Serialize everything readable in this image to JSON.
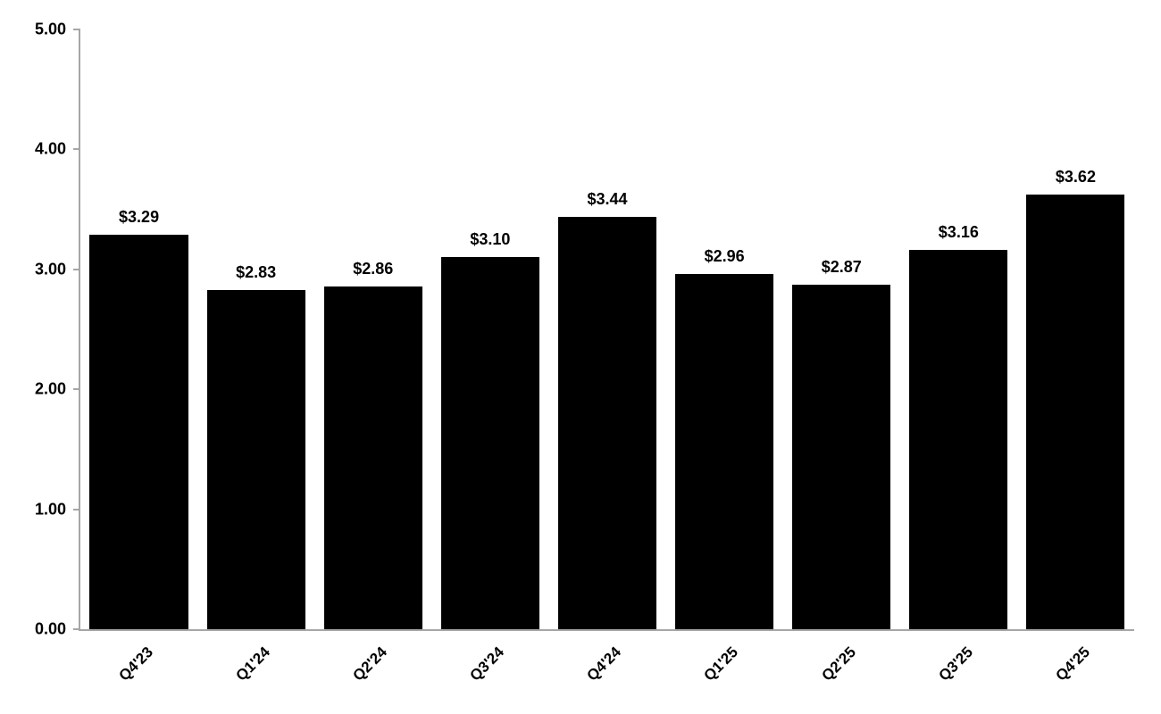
{
  "chart_data": {
    "type": "bar",
    "title": "",
    "xlabel": "",
    "ylabel": "",
    "categories": [
      "Q4'23",
      "Q1'24",
      "Q2'24",
      "Q3'24",
      "Q4'24",
      "Q1'25",
      "Q2'25",
      "Q3'25",
      "Q4'25"
    ],
    "values": [
      3.29,
      2.83,
      2.86,
      3.1,
      3.44,
      2.96,
      2.87,
      3.16,
      3.62
    ],
    "data_labels": [
      "$3.29",
      "$2.83",
      "$2.86",
      "$3.10",
      "$3.44",
      "$2.96",
      "$2.87",
      "$3.16",
      "$3.62"
    ],
    "ylim": [
      0,
      5
    ],
    "yticks": [
      0,
      1,
      2,
      3,
      4,
      5
    ],
    "ytick_labels": [
      "0.00",
      "1.00",
      "2.00",
      "3.00",
      "4.00",
      "5.00"
    ],
    "grid": false,
    "legend": false,
    "bar_color": "#000000",
    "axis_color": "#a6a6a6",
    "label_color": "#000000"
  }
}
